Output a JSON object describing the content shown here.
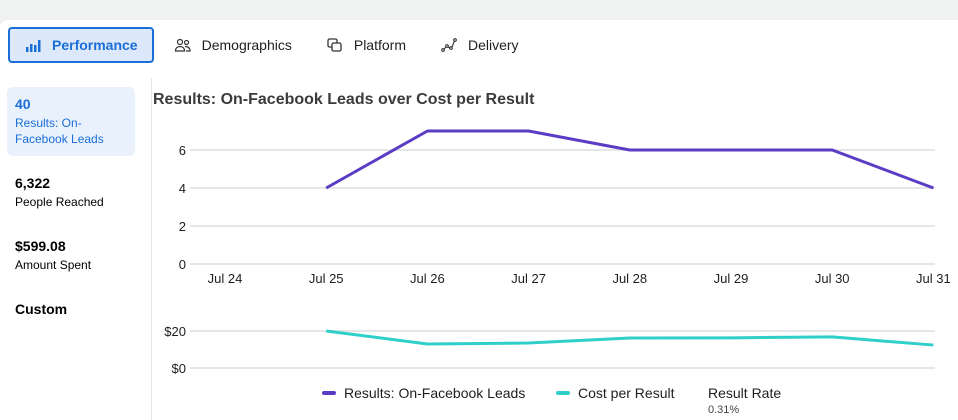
{
  "tabs": [
    {
      "label": "Performance",
      "icon": "bar-chart-icon"
    },
    {
      "label": "Demographics",
      "icon": "people-icon"
    },
    {
      "label": "Platform",
      "icon": "platform-icon"
    },
    {
      "label": "Delivery",
      "icon": "delivery-icon"
    }
  ],
  "metrics": [
    {
      "value": "40",
      "label": "Results: On-Facebook Leads"
    },
    {
      "value": "6,322",
      "label": "People Reached"
    },
    {
      "value": "$599.08",
      "label": "Amount Spent"
    },
    {
      "value": "Custom",
      "label": ""
    }
  ],
  "colors": {
    "accent": "#1a6ed8",
    "results": "#5b3cc4",
    "cost": "#2fcfc9"
  },
  "chart_data": [
    {
      "type": "line",
      "title": "Results: On-Facebook Leads over Cost per Result",
      "categories": [
        "Jul 24",
        "Jul 25",
        "Jul 26",
        "Jul 27",
        "Jul 28",
        "Jul 29",
        "Jul 30",
        "Jul 31"
      ],
      "series": [
        {
          "name": "Results: On-Facebook Leads",
          "values": [
            null,
            4,
            7,
            7,
            6,
            6,
            6,
            4
          ]
        }
      ],
      "ylim": [
        0,
        7
      ],
      "yticks": [
        "0",
        "2",
        "4",
        "6"
      ],
      "ytick_values": [
        0,
        2,
        4,
        6
      ]
    },
    {
      "type": "line",
      "categories": [
        "Jul 24",
        "Jul 25",
        "Jul 26",
        "Jul 27",
        "Jul 28",
        "Jul 29",
        "Jul 30",
        "Jul 31"
      ],
      "series": [
        {
          "name": "Cost per Result",
          "values": [
            null,
            20,
            13,
            13.5,
            16.2,
            16.3,
            16.8,
            12.4
          ]
        }
      ],
      "yticks": [
        "$0",
        "$20"
      ],
      "ytick_values": [
        0,
        20
      ]
    }
  ],
  "legend": {
    "results": "Results: On-Facebook Leads",
    "cost": "Cost per Result",
    "rate_label": "Result Rate",
    "rate_value": "0.31%"
  }
}
